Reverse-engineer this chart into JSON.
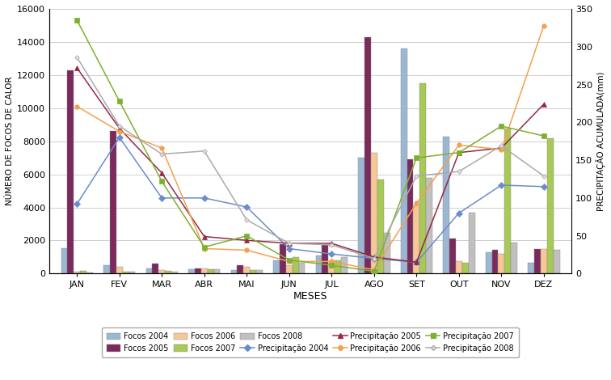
{
  "months": [
    "JAN",
    "FEV",
    "MAR",
    "ABR",
    "MAI",
    "JUN",
    "JUL",
    "AGO",
    "SET",
    "OUT",
    "NOV",
    "DEZ"
  ],
  "focos_2004": [
    1550,
    530,
    310,
    280,
    230,
    800,
    1100,
    7000,
    13600,
    8300,
    1300,
    650
  ],
  "focos_2005": [
    12300,
    8600,
    600,
    330,
    530,
    1800,
    1750,
    14300,
    6900,
    2100,
    1450,
    1500
  ],
  "focos_2006": [
    100,
    430,
    200,
    300,
    420,
    500,
    650,
    7300,
    4100,
    750,
    1200,
    1500
  ],
  "focos_2007": [
    150,
    130,
    150,
    250,
    200,
    1000,
    800,
    5700,
    11500,
    650,
    8750,
    8200
  ],
  "focos_2008": [
    50,
    130,
    120,
    250,
    200,
    650,
    1000,
    2450,
    5800,
    3700,
    1900,
    1450
  ],
  "precip_2004": [
    92,
    180,
    100,
    100,
    88,
    33,
    26,
    20,
    15,
    80,
    117,
    115
  ],
  "precip_2005": [
    272,
    192,
    133,
    49,
    44,
    40,
    40,
    22,
    15,
    160,
    166,
    224
  ],
  "precip_2006": [
    221,
    188,
    166,
    33,
    31,
    16,
    16,
    5,
    93,
    170,
    164,
    328
  ],
  "precip_2007": [
    335,
    228,
    122,
    35,
    50,
    18,
    11,
    3,
    153,
    160,
    195,
    182
  ],
  "precip_2008": [
    286,
    195,
    158,
    162,
    71,
    40,
    38,
    20,
    129,
    135,
    169,
    129
  ],
  "bar_colors": {
    "2004": "#9BB7D4",
    "2005": "#7B2A5C",
    "2006": "#F5C896",
    "2007": "#A8C857",
    "2008": "#C0C0C0"
  },
  "line_colors": {
    "2004": "#6B8CCC",
    "2005": "#962845",
    "2006": "#F5A050",
    "2007": "#7DB030",
    "2008": "#AAAAAA"
  },
  "left_ylim": [
    0,
    16000
  ],
  "right_ylim": [
    0,
    350
  ],
  "left_yticks": [
    0,
    2000,
    4000,
    6000,
    8000,
    10000,
    12000,
    14000,
    16000
  ],
  "right_yticks": [
    0,
    50,
    100,
    150,
    200,
    250,
    300,
    350
  ],
  "left_ylabel": "NÚMERO DE FOCOS DE CALOR",
  "right_ylabel": "PRECIPITAÇÃO ACUMULADA(mm)",
  "xlabel": "MESES",
  "background_color": "#FFFFFF",
  "grid_color": "#C8C8C8"
}
